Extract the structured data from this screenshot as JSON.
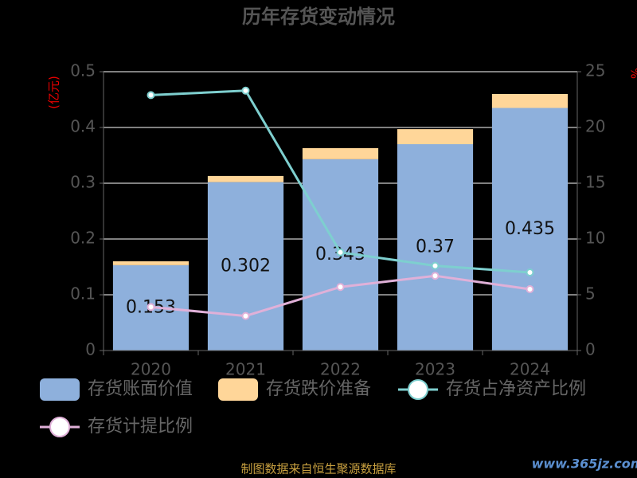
{
  "chart_data": {
    "type": "bar",
    "title": "历年存货变动情况",
    "y_label": "(亿元)",
    "y2_label": "%",
    "categories": [
      "2020",
      "2021",
      "2022",
      "2023",
      "2024"
    ],
    "stacked": true,
    "series": [
      {
        "name": "存货账面价值",
        "color": "#8eb0dc",
        "values": [
          0.153,
          0.302,
          0.343,
          0.37,
          0.435
        ],
        "show_labels": true
      },
      {
        "name": "存货跌价准备",
        "color": "#ffd699",
        "values": [
          0.007,
          0.011,
          0.02,
          0.027,
          0.025
        ]
      },
      {
        "name": "存货占净资产比例",
        "type": "line",
        "axis": "y2",
        "color": "#7ecfcf",
        "values": [
          22.9,
          23.3,
          8.8,
          7.6,
          7.0
        ]
      },
      {
        "name": "存货计提比例",
        "type": "line",
        "axis": "y2",
        "color": "#e0b0d8",
        "values": [
          3.9,
          3.1,
          5.7,
          6.7,
          5.5
        ]
      }
    ],
    "ylim": [
      0,
      0.5
    ],
    "yticks": [
      0,
      0.1,
      0.2,
      0.3,
      0.4,
      0.5
    ],
    "y2lim": [
      0,
      25
    ],
    "y2ticks": [
      0,
      5,
      10,
      15,
      20,
      25
    ],
    "grid": true,
    "source": "制图数据来自恒生聚源数据库",
    "watermark": "www.365jz.com"
  }
}
